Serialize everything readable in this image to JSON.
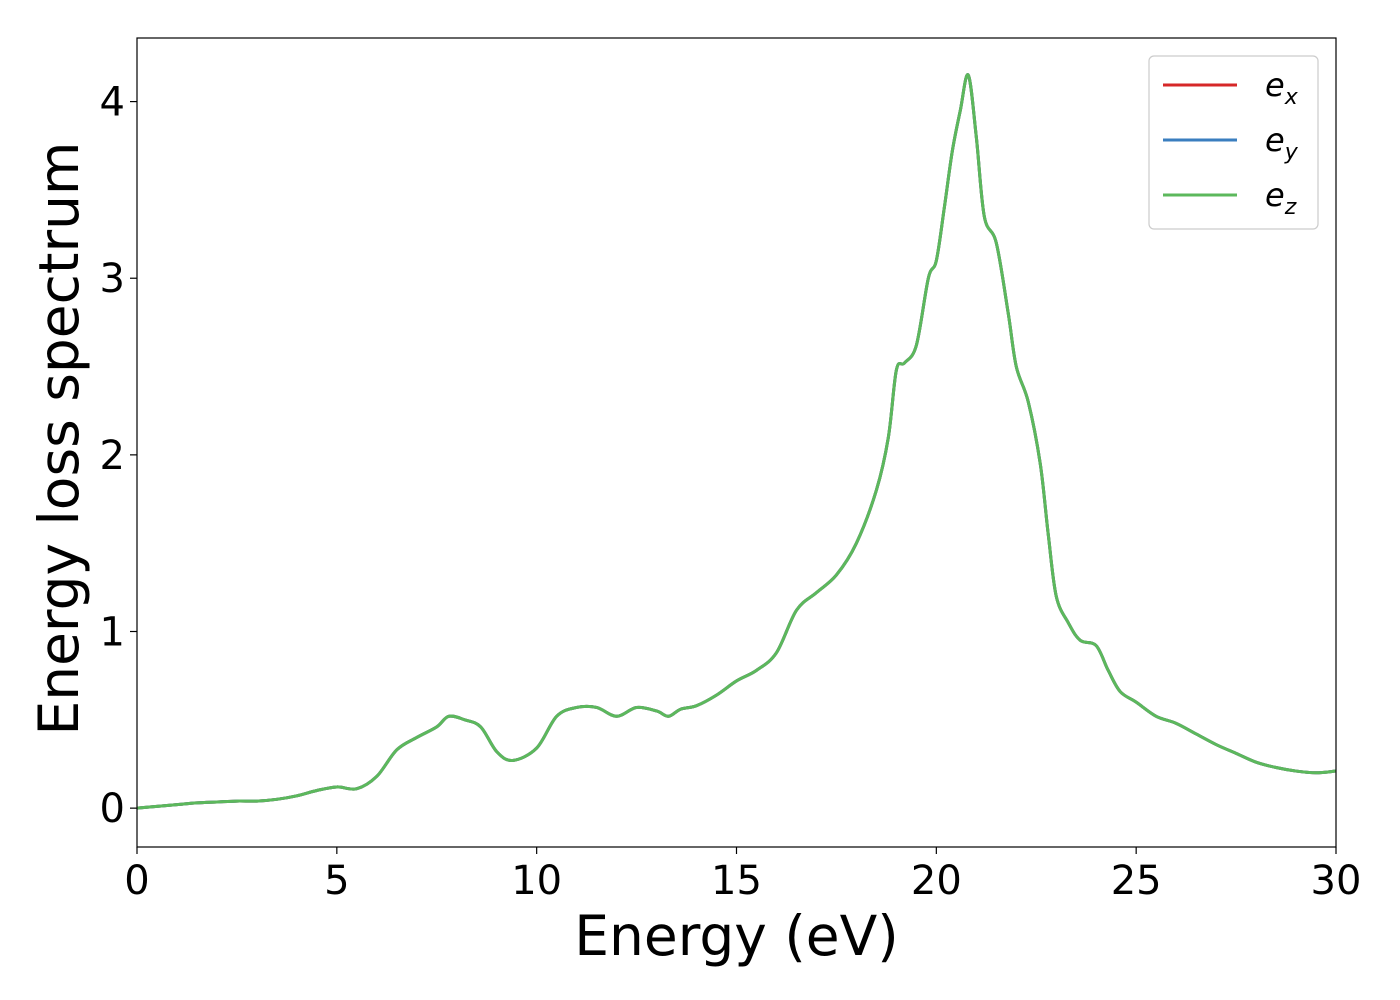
{
  "chart_data": {
    "type": "line",
    "title": "",
    "xlabel": "Energy (eV)",
    "ylabel": "Energy loss spectrum",
    "xlim": [
      0,
      30
    ],
    "ylim": [
      -0.22,
      4.36
    ],
    "xticks": [
      0,
      5,
      10,
      15,
      20,
      25,
      30
    ],
    "yticks": [
      0,
      1,
      2,
      3,
      4
    ],
    "xtick_labels": [
      "0",
      "5",
      "10",
      "15",
      "20",
      "25",
      "30"
    ],
    "ytick_labels": [
      "0",
      "1",
      "2",
      "3",
      "4"
    ],
    "grid": false,
    "legend": "top-right",
    "x": [
      0,
      0.5,
      1,
      1.5,
      2,
      2.5,
      3,
      3.5,
      4,
      4.5,
      5,
      5.5,
      6,
      6.5,
      7,
      7.5,
      7.8,
      8.2,
      8.6,
      9,
      9.4,
      10,
      10.5,
      11,
      11.5,
      12,
      12.5,
      13,
      13.3,
      13.6,
      14,
      14.5,
      15,
      15.5,
      16,
      16.5,
      17,
      17.5,
      18,
      18.5,
      18.8,
      19,
      19.2,
      19.5,
      19.8,
      20,
      20.2,
      20.4,
      20.6,
      20.8,
      21,
      21.2,
      21.5,
      21.8,
      22,
      22.3,
      22.6,
      22.8,
      23,
      23.3,
      23.6,
      24,
      24.3,
      24.6,
      25,
      25.5,
      26,
      26.5,
      27,
      27.5,
      28,
      28.5,
      29,
      29.5,
      30
    ],
    "series": [
      {
        "name": "e_x",
        "label_base": "e",
        "label_sub": "x",
        "color": "#d62728",
        "values": [
          0.0,
          0.01,
          0.02,
          0.03,
          0.035,
          0.04,
          0.04,
          0.05,
          0.07,
          0.1,
          0.12,
          0.11,
          0.18,
          0.33,
          0.4,
          0.46,
          0.52,
          0.5,
          0.46,
          0.32,
          0.27,
          0.34,
          0.52,
          0.57,
          0.57,
          0.52,
          0.57,
          0.55,
          0.52,
          0.56,
          0.58,
          0.64,
          0.72,
          0.78,
          0.88,
          1.12,
          1.22,
          1.32,
          1.5,
          1.8,
          2.1,
          2.48,
          2.52,
          2.62,
          3.0,
          3.1,
          3.4,
          3.72,
          3.95,
          4.15,
          3.8,
          3.35,
          3.2,
          2.8,
          2.5,
          2.3,
          1.95,
          1.55,
          1.2,
          1.05,
          0.95,
          0.92,
          0.78,
          0.66,
          0.6,
          0.52,
          0.48,
          0.42,
          0.36,
          0.31,
          0.26,
          0.23,
          0.21,
          0.2,
          0.21
        ]
      },
      {
        "name": "e_y",
        "label_base": "e",
        "label_sub": "y",
        "color": "#3a7ebf",
        "values": [
          0.0,
          0.01,
          0.02,
          0.03,
          0.035,
          0.04,
          0.04,
          0.05,
          0.07,
          0.1,
          0.12,
          0.11,
          0.18,
          0.33,
          0.4,
          0.46,
          0.52,
          0.5,
          0.46,
          0.32,
          0.27,
          0.34,
          0.52,
          0.57,
          0.57,
          0.52,
          0.57,
          0.55,
          0.52,
          0.56,
          0.58,
          0.64,
          0.72,
          0.78,
          0.88,
          1.12,
          1.22,
          1.32,
          1.5,
          1.8,
          2.1,
          2.48,
          2.52,
          2.62,
          3.0,
          3.1,
          3.4,
          3.72,
          3.95,
          4.15,
          3.8,
          3.35,
          3.2,
          2.8,
          2.5,
          2.3,
          1.95,
          1.55,
          1.2,
          1.05,
          0.95,
          0.92,
          0.78,
          0.66,
          0.6,
          0.52,
          0.48,
          0.42,
          0.36,
          0.31,
          0.26,
          0.23,
          0.21,
          0.2,
          0.21
        ]
      },
      {
        "name": "e_z",
        "label_base": "e",
        "label_sub": "z",
        "color": "#5cb85c",
        "values": [
          0.0,
          0.01,
          0.02,
          0.03,
          0.035,
          0.04,
          0.04,
          0.05,
          0.07,
          0.1,
          0.12,
          0.11,
          0.18,
          0.33,
          0.4,
          0.46,
          0.52,
          0.5,
          0.46,
          0.32,
          0.27,
          0.34,
          0.52,
          0.57,
          0.57,
          0.52,
          0.57,
          0.55,
          0.52,
          0.56,
          0.58,
          0.64,
          0.72,
          0.78,
          0.88,
          1.12,
          1.22,
          1.32,
          1.5,
          1.8,
          2.1,
          2.48,
          2.52,
          2.62,
          3.0,
          3.1,
          3.4,
          3.72,
          3.95,
          4.15,
          3.8,
          3.35,
          3.2,
          2.8,
          2.5,
          2.3,
          1.95,
          1.55,
          1.2,
          1.05,
          0.95,
          0.92,
          0.78,
          0.66,
          0.6,
          0.52,
          0.48,
          0.42,
          0.36,
          0.31,
          0.26,
          0.23,
          0.21,
          0.2,
          0.21
        ]
      }
    ]
  }
}
